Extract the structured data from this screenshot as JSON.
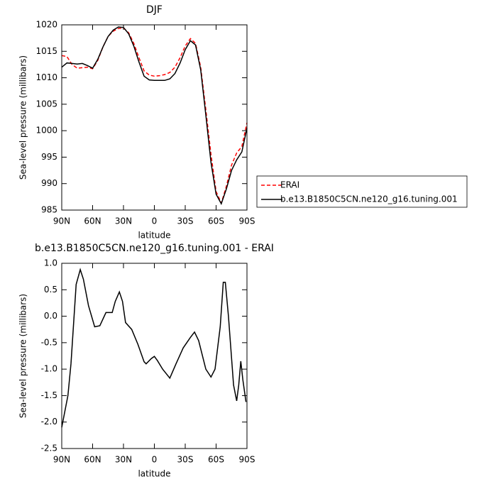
{
  "chart_data": [
    {
      "type": "line",
      "title": "DJF",
      "xlabel": "latitude",
      "ylabel": "Sea-level pressure (millibars)",
      "x": [
        90,
        85,
        80,
        75,
        70,
        65,
        60,
        55,
        50,
        45,
        40,
        35,
        30,
        25,
        20,
        15,
        10,
        5,
        0,
        -5,
        -10,
        -15,
        -20,
        -25,
        -30,
        -35,
        -40,
        -45,
        -50,
        -55,
        -60,
        -65,
        -70,
        -75,
        -80,
        -85,
        -90
      ],
      "series": [
        {
          "name": "ERAI",
          "color": "#ff0000",
          "linestyle": "dashed",
          "values": [
            1014.2,
            1014.0,
            1012.5,
            1011.8,
            1011.9,
            1012.0,
            1011.7,
            1013.3,
            1015.8,
            1017.8,
            1018.8,
            1019.3,
            1019.4,
            1018.5,
            1016.5,
            1013.8,
            1011.3,
            1010.5,
            1010.3,
            1010.4,
            1010.6,
            1011.0,
            1012.0,
            1013.8,
            1016.0,
            1017.4,
            1016.5,
            1012.0,
            1004.0,
            995.5,
            988.5,
            986.3,
            989.5,
            993.5,
            995.8,
            997.0,
            1001.5
          ]
        },
        {
          "name": "b.e13.B1850C5CN.ne120_g16.tuning.001",
          "color": "#000000",
          "linestyle": "solid",
          "values": [
            1012.0,
            1012.8,
            1012.7,
            1012.6,
            1012.7,
            1012.3,
            1011.8,
            1013.5,
            1015.8,
            1017.8,
            1019.0,
            1019.6,
            1019.5,
            1018.3,
            1016.0,
            1013.0,
            1010.3,
            1009.6,
            1009.5,
            1009.5,
            1009.5,
            1009.8,
            1010.8,
            1012.8,
            1015.3,
            1017.0,
            1016.2,
            1011.5,
            1003.0,
            994.0,
            988.0,
            986.2,
            989.0,
            992.5,
            994.5,
            996.0,
            1000.5
          ]
        }
      ],
      "xlim": [
        90,
        -90
      ],
      "xticks": [
        {
          "value": 90,
          "label": "90N"
        },
        {
          "value": 60,
          "label": "60N"
        },
        {
          "value": 30,
          "label": "30N"
        },
        0,
        {
          "value": -30,
          "label": "30S"
        },
        {
          "value": -60,
          "label": "60S"
        },
        {
          "value": -90,
          "label": "90S"
        }
      ],
      "ylim": [
        985,
        1020
      ],
      "yticks": [
        985,
        990,
        995,
        1000,
        1005,
        1010,
        1015,
        1020
      ],
      "legend": "right"
    },
    {
      "type": "line",
      "title": "b.e13.B1850C5CN.ne120_g16.tuning.001 - ERAI",
      "xlabel": "latitude",
      "ylabel": "Sea-level pressure (millibars)",
      "x": [
        90,
        84,
        81,
        76,
        72,
        69,
        64,
        58,
        53,
        47,
        41,
        38,
        34,
        31,
        28,
        22,
        16,
        10,
        8,
        3,
        0,
        -3,
        -8,
        -15,
        -21,
        -28,
        -35,
        -39,
        -43,
        -50,
        -55,
        -59,
        -64,
        -67,
        -69,
        -72,
        -77,
        -80,
        -82,
        -84,
        -86,
        -89
      ],
      "series": [
        {
          "name": "b.e13.B1850C5CN.ne120_g16.tuning.001 - ERAI",
          "color": "#000000",
          "linestyle": "solid",
          "values": [
            -2.1,
            -1.5,
            -0.9,
            0.6,
            0.88,
            0.7,
            0.2,
            -0.2,
            -0.18,
            0.07,
            0.07,
            0.28,
            0.46,
            0.28,
            -0.12,
            -0.25,
            -0.53,
            -0.86,
            -0.9,
            -0.8,
            -0.76,
            -0.84,
            -1.0,
            -1.17,
            -0.9,
            -0.6,
            -0.4,
            -0.3,
            -0.46,
            -1.0,
            -1.15,
            -1.0,
            -0.2,
            0.64,
            0.64,
            0.0,
            -1.3,
            -1.6,
            -1.3,
            -0.85,
            -1.2,
            -1.62
          ]
        }
      ],
      "xlim": [
        90,
        -90
      ],
      "xticks": [
        {
          "value": 90,
          "label": "90N"
        },
        {
          "value": 60,
          "label": "60N"
        },
        {
          "value": 30,
          "label": "30N"
        },
        0,
        {
          "value": -30,
          "label": "30S"
        },
        {
          "value": -60,
          "label": "60S"
        },
        {
          "value": -90,
          "label": "90S"
        }
      ],
      "ylim": [
        -2.5,
        1
      ],
      "yticks": [
        -2.5,
        {
          "value": -2,
          "label": "-2.0"
        },
        -1.5,
        {
          "value": -1,
          "label": "-1.0"
        },
        -0.5,
        {
          "value": 0,
          "label": "0.0"
        },
        0.5,
        {
          "value": 1,
          "label": "1.0"
        }
      ]
    }
  ]
}
